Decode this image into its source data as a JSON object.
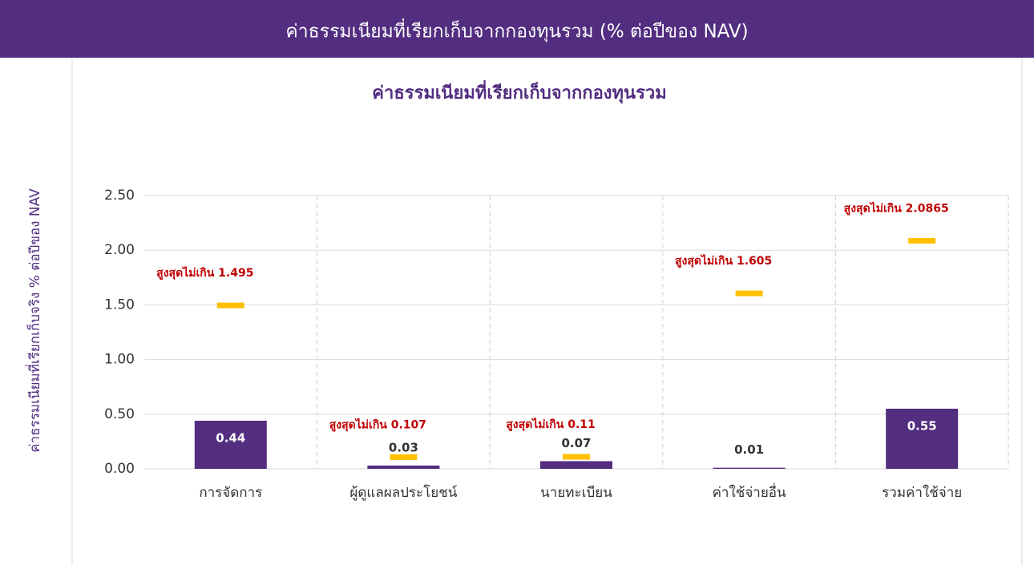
{
  "header": {
    "title": "ค่าธรรมเนียมที่เรียกเก็บจากกองทุนรวม (% ต่อปีของ NAV)"
  },
  "chart_data": {
    "type": "bar",
    "title": "ค่าธรรมเนียมที่เรียกเก็บจากกองทุนรวม",
    "y_label": "ค่าธรรมเนียมที่เรียกเก็บจริง % ต่อปีของ NAV",
    "categories": [
      "การจัดการ",
      "ผู้ดูแลผลประโยชน์",
      "นายทะเบียน",
      "ค่าใช้จ่ายอื่น",
      "รวมค่าใช้จ่าย"
    ],
    "series": [
      {
        "type": "bar",
        "color": "#522d80",
        "values": [
          0.44,
          0.03,
          0.07,
          0.01,
          0.55
        ]
      },
      {
        "type": "dash",
        "color": "#ffc000",
        "label_color": "#c00000",
        "values": [
          1.495,
          0.107,
          0.11,
          1.605,
          2.0865
        ],
        "value_labels": [
          "สูงสุดไม่เกิน 1.495",
          "สูงสุดไม่เกิน 0.107",
          "สูงสุดไม่เกิน 0.11",
          "สูงสุดไม่เกิน 1.605",
          "สูงสุดไม่เกิน 2.0865"
        ]
      }
    ],
    "ylim": [
      0,
      2.5
    ],
    "yticks": [
      {
        "value": 0,
        "label": "0.00"
      },
      {
        "value": 0.5,
        "label": "0.50"
      },
      {
        "value": 1,
        "label": "1.00"
      },
      {
        "value": 1.5,
        "label": "1.50"
      },
      {
        "value": 2,
        "label": "2.00"
      },
      {
        "value": 2.5,
        "label": "2.50"
      }
    ],
    "grid": true
  }
}
